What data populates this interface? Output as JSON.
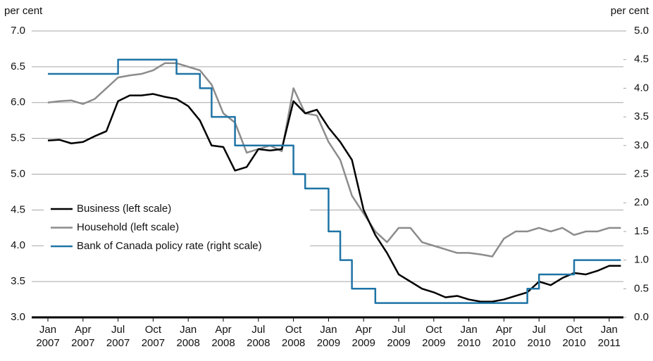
{
  "chart_data": {
    "type": "line",
    "y_label": "per cent",
    "y2_label": "per cent",
    "categories": [
      "Jan\n2007",
      null,
      null,
      "Apr\n2007",
      null,
      null,
      "Jul\n2007",
      null,
      null,
      "Oct\n2007",
      null,
      null,
      "Jan\n2008",
      null,
      null,
      "Apr\n2008",
      null,
      null,
      "Jul\n2008",
      null,
      null,
      "Oct\n2008",
      null,
      null,
      "Jan\n2009",
      null,
      null,
      "Apr\n2009",
      null,
      null,
      "Jul\n2009",
      null,
      null,
      "Oct\n2009",
      null,
      null,
      "Jan\n2010",
      null,
      null,
      "Apr\n2010",
      null,
      null,
      "Jul\n2010",
      null,
      null,
      "Oct\n2010",
      null,
      null,
      "Jan\n2011",
      null
    ],
    "series": [
      {
        "name": "Business (left scale)",
        "color": "#000000",
        "step": false,
        "values": [
          5.47,
          5.48,
          5.43,
          5.45,
          5.53,
          5.6,
          6.02,
          6.1,
          6.1,
          6.12,
          6.08,
          6.05,
          5.95,
          5.75,
          5.4,
          5.38,
          5.05,
          5.1,
          5.35,
          5.33,
          5.35,
          6.02,
          5.85,
          5.9,
          5.65,
          5.45,
          5.2,
          4.5,
          4.15,
          3.9,
          3.6,
          3.5,
          3.4,
          3.35,
          3.28,
          3.3,
          3.25,
          3.22,
          3.22,
          3.25,
          3.3,
          3.35,
          3.5,
          3.45,
          3.55,
          3.62,
          3.6,
          3.65,
          3.72,
          3.72
        ]
      },
      {
        "name": "Household (left scale)",
        "color": "#8c8c8c",
        "step": false,
        "values": [
          6.0,
          6.02,
          6.03,
          5.98,
          6.05,
          6.2,
          6.35,
          6.38,
          6.4,
          6.45,
          6.55,
          6.55,
          6.5,
          6.45,
          6.25,
          5.85,
          5.72,
          5.3,
          5.35,
          5.4,
          5.32,
          6.2,
          5.85,
          5.82,
          5.45,
          5.2,
          4.7,
          4.45,
          4.2,
          4.05,
          4.25,
          4.25,
          4.05,
          4.0,
          3.95,
          3.9,
          3.9,
          3.88,
          3.85,
          4.1,
          4.2,
          4.2,
          4.25,
          4.2,
          4.25,
          4.15,
          4.2,
          4.2,
          4.25,
          4.25
        ]
      },
      {
        "name": "Bank of Canada policy rate (right scale)",
        "color": "#1f74a6",
        "step": true,
        "axis": "y2",
        "values": [
          4.25,
          4.25,
          4.25,
          4.25,
          4.25,
          4.25,
          4.5,
          4.5,
          4.5,
          4.5,
          4.5,
          4.25,
          4.25,
          4.0,
          3.5,
          3.5,
          3.0,
          3.0,
          3.0,
          3.0,
          3.0,
          2.5,
          2.25,
          2.25,
          1.5,
          1.0,
          0.5,
          0.5,
          0.25,
          0.25,
          0.25,
          0.25,
          0.25,
          0.25,
          0.25,
          0.25,
          0.25,
          0.25,
          0.25,
          0.25,
          0.25,
          0.5,
          0.75,
          0.75,
          0.75,
          1.0,
          1.0,
          1.0,
          1.0,
          1.0
        ]
      }
    ],
    "ylim": [
      3.0,
      7.0
    ],
    "yticks": [
      {
        "value": 3,
        "label": "3.0"
      },
      3.5,
      {
        "value": 4,
        "label": "4.0"
      },
      4.5,
      {
        "value": 5,
        "label": "5.0"
      },
      5.5,
      {
        "value": 6,
        "label": "6.0"
      },
      6.5,
      {
        "value": 7,
        "label": "7.0"
      }
    ],
    "y2lim": [
      0,
      5
    ],
    "y2ticks": [
      {
        "value": 0,
        "label": "0.0"
      },
      0.5,
      {
        "value": 1,
        "label": "1.0"
      },
      1.5,
      {
        "value": 2,
        "label": "2.0"
      },
      2.5,
      {
        "value": 3,
        "label": "3.0"
      },
      3.5,
      {
        "value": 4,
        "label": "4.0"
      },
      4.5,
      {
        "value": 5,
        "label": "5.0"
      }
    ],
    "grid": true,
    "legend": "left"
  }
}
